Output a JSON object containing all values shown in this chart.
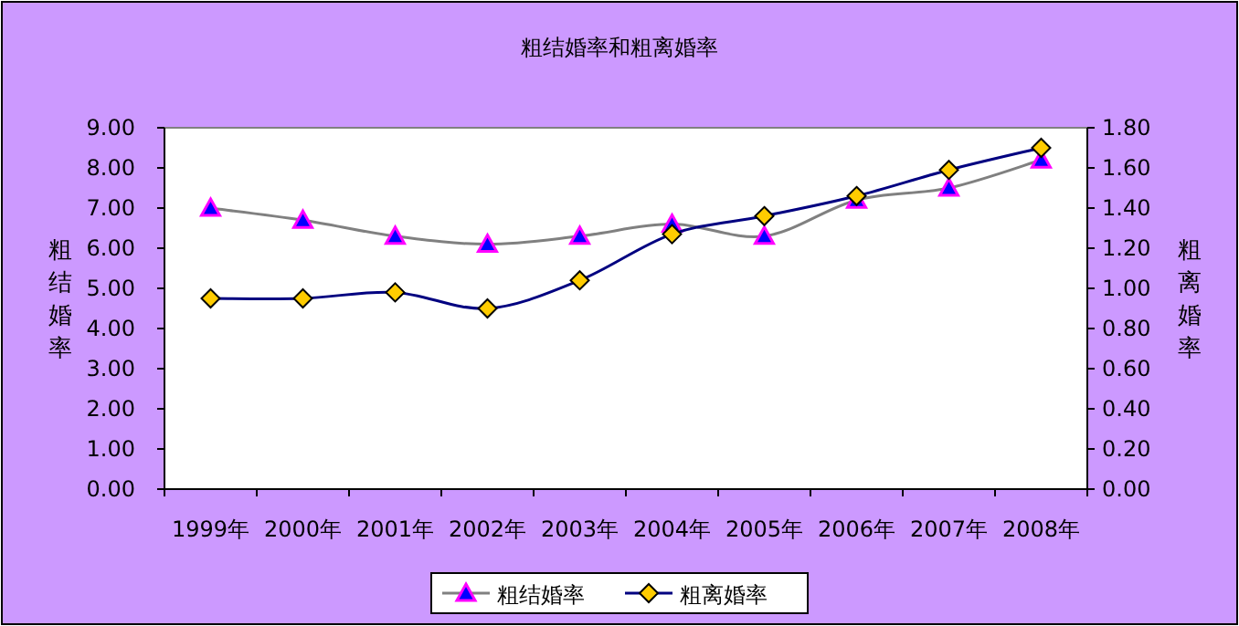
{
  "chart_data": {
    "type": "line",
    "title": "粗结婚率和粗离婚率",
    "ylabel": "粗结婚率",
    "y2label": "粗离婚率",
    "categories": [
      "1999年",
      "2000年",
      "2001年",
      "2002年",
      "2003年",
      "2004年",
      "2005年",
      "2006年",
      "2007年",
      "2008年"
    ],
    "series": [
      {
        "name": "粗结婚率",
        "color": "#808080",
        "marker": "triangle",
        "values": [
          7.0,
          6.7,
          6.3,
          6.1,
          6.3,
          6.6,
          6.3,
          7.2,
          7.5,
          8.2
        ]
      },
      {
        "name": "粗离婚率",
        "color": "#000080",
        "marker": "diamond",
        "axis": "y2",
        "values": [
          0.95,
          0.95,
          0.98,
          0.9,
          1.04,
          1.27,
          1.36,
          1.46,
          1.59,
          1.7
        ]
      }
    ],
    "ylim": [
      0,
      9
    ],
    "yticks": [
      {
        "value": 0,
        "label": "0.00"
      },
      {
        "value": 1,
        "label": "1.00"
      },
      {
        "value": 2,
        "label": "2.00"
      },
      {
        "value": 3,
        "label": "3.00"
      },
      {
        "value": 4,
        "label": "4.00"
      },
      {
        "value": 5,
        "label": "5.00"
      },
      {
        "value": 6,
        "label": "6.00"
      },
      {
        "value": 7,
        "label": "7.00"
      },
      {
        "value": 8,
        "label": "8.00"
      },
      {
        "value": 9,
        "label": "9.00"
      }
    ],
    "y2lim": [
      0,
      1.8
    ],
    "y2ticks": [
      {
        "value": 0,
        "label": "0.00"
      },
      {
        "value": 0.2,
        "label": "0.20"
      },
      {
        "value": 0.4,
        "label": "0.40"
      },
      {
        "value": 0.6,
        "label": "0.60"
      },
      {
        "value": 0.8,
        "label": "0.80"
      },
      {
        "value": 1,
        "label": "1.00"
      },
      {
        "value": 1.2,
        "label": "1.20"
      },
      {
        "value": 1.4,
        "label": "1.40"
      },
      {
        "value": 1.6,
        "label": "1.60"
      },
      {
        "value": 1.8,
        "label": "1.80"
      }
    ],
    "legend": "bottom",
    "grid": false
  }
}
